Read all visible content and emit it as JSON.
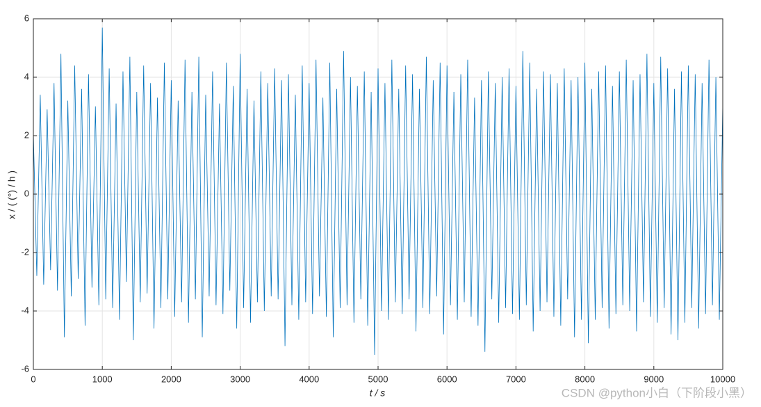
{
  "chart_data": {
    "type": "line",
    "xlabel": "t  / s",
    "ylabel": "x / ( (°) / h )",
    "watermark": "CSDN @python小白（下阶段小黑）",
    "color": "#0072bd",
    "grid": true,
    "xlim": [
      0,
      10000
    ],
    "ylim": [
      -6,
      6
    ],
    "xticks": [
      0,
      1000,
      2000,
      3000,
      4000,
      5000,
      6000,
      7000,
      8000,
      9000,
      10000
    ],
    "yticks": [
      -6,
      -4,
      -2,
      0,
      2,
      4,
      6
    ],
    "x": [
      0,
      50,
      100,
      150,
      200,
      250,
      300,
      350,
      400,
      450,
      500,
      550,
      600,
      650,
      700,
      750,
      800,
      850,
      900,
      950,
      1000,
      1050,
      1100,
      1150,
      1200,
      1250,
      1300,
      1350,
      1400,
      1450,
      1500,
      1550,
      1600,
      1650,
      1700,
      1750,
      1800,
      1850,
      1900,
      1950,
      2000,
      2050,
      2100,
      2150,
      2200,
      2250,
      2300,
      2350,
      2400,
      2450,
      2500,
      2550,
      2600,
      2650,
      2700,
      2750,
      2800,
      2850,
      2900,
      2950,
      3000,
      3050,
      3100,
      3150,
      3200,
      3250,
      3300,
      3350,
      3400,
      3450,
      3500,
      3550,
      3600,
      3650,
      3700,
      3750,
      3800,
      3850,
      3900,
      3950,
      4000,
      4050,
      4100,
      4150,
      4200,
      4250,
      4300,
      4350,
      4400,
      4450,
      4500,
      4550,
      4600,
      4650,
      4700,
      4750,
      4800,
      4850,
      4900,
      4950,
      5000,
      5050,
      5100,
      5150,
      5200,
      5250,
      5300,
      5350,
      5400,
      5450,
      5500,
      5550,
      5600,
      5650,
      5700,
      5750,
      5800,
      5850,
      5900,
      5950,
      6000,
      6050,
      6100,
      6150,
      6200,
      6250,
      6300,
      6350,
      6400,
      6450,
      6500,
      6550,
      6600,
      6650,
      6700,
      6750,
      6800,
      6850,
      6900,
      6950,
      7000,
      7050,
      7100,
      7150,
      7200,
      7250,
      7300,
      7350,
      7400,
      7450,
      7500,
      7550,
      7600,
      7650,
      7700,
      7750,
      7800,
      7850,
      7900,
      7950,
      8000,
      8050,
      8100,
      8150,
      8200,
      8250,
      8300,
      8350,
      8400,
      8450,
      8500,
      8550,
      8600,
      8650,
      8700,
      8750,
      8800,
      8850,
      8900,
      8950,
      9000,
      9050,
      9100,
      9150,
      9200,
      9250,
      9300,
      9350,
      9400,
      9450,
      9500,
      9550,
      9600,
      9650,
      9700,
      9750,
      9800,
      9850,
      9900,
      9950,
      10000
    ],
    "values": [
      2.1,
      -2.8,
      3.4,
      -3.1,
      2.9,
      -2.6,
      3.8,
      -3.3,
      4.8,
      -4.9,
      3.2,
      -3.5,
      4.4,
      -2.9,
      3.6,
      -4.5,
      4.1,
      -3.2,
      3.0,
      -3.8,
      5.7,
      -3.6,
      4.3,
      -3.9,
      3.1,
      -4.3,
      4.2,
      -3.0,
      4.7,
      -5.0,
      3.5,
      -3.7,
      4.4,
      -3.4,
      3.8,
      -4.6,
      3.3,
      -3.9,
      4.5,
      -3.6,
      3.9,
      -4.2,
      3.2,
      -3.7,
      4.6,
      -4.4,
      3.5,
      -3.6,
      4.7,
      -4.9,
      3.4,
      -3.5,
      4.2,
      -3.8,
      3.1,
      -4.1,
      4.5,
      -3.3,
      3.7,
      -4.6,
      4.8,
      -3.9,
      3.6,
      -4.4,
      3.2,
      -3.7,
      4.2,
      -4.0,
      3.8,
      -3.5,
      4.3,
      -3.6,
      3.9,
      -5.2,
      4.1,
      -3.8,
      3.4,
      -4.3,
      4.4,
      -3.7,
      3.8,
      -4.1,
      4.6,
      -3.5,
      3.3,
      -4.2,
      4.5,
      -4.9,
      3.6,
      -3.9,
      4.9,
      -3.8,
      4.0,
      -4.4,
      3.7,
      -3.6,
      4.2,
      -4.5,
      3.5,
      -5.5,
      4.3,
      -4.0,
      3.8,
      -4.3,
      4.6,
      -3.7,
      3.6,
      -4.1,
      4.4,
      -3.6,
      4.1,
      -4.7,
      3.6,
      -3.9,
      4.7,
      -4.1,
      3.9,
      -3.5,
      4.5,
      -4.8,
      4.4,
      -3.8,
      3.5,
      -4.3,
      4.1,
      -3.7,
      4.6,
      -4.2,
      3.3,
      -4.5,
      3.9,
      -5.4,
      4.2,
      -3.6,
      3.8,
      -4.4,
      4.0,
      -3.9,
      4.3,
      -4.1,
      3.7,
      -4.3,
      4.9,
      -3.8,
      4.5,
      -4.7,
      3.6,
      -4.0,
      4.2,
      -3.7,
      4.1,
      -4.2,
      3.8,
      -4.5,
      4.3,
      -3.6,
      3.9,
      -4.9,
      4.0,
      -4.3,
      4.5,
      -5.1,
      3.6,
      -4.3,
      4.2,
      -3.9,
      4.4,
      -4.6,
      3.7,
      -4.1,
      4.2,
      -3.8,
      4.6,
      -4.0,
      3.9,
      -4.7,
      4.1,
      -3.7,
      4.8,
      -4.2,
      3.8,
      -4.4,
      4.7,
      -3.9,
      4.3,
      -4.8,
      3.6,
      -5.0,
      4.2,
      -4.4,
      4.4,
      -3.9,
      4.1,
      -4.6,
      3.8,
      -4.1,
      4.6,
      -3.8,
      4.0,
      -4.3,
      3.1
    ]
  }
}
